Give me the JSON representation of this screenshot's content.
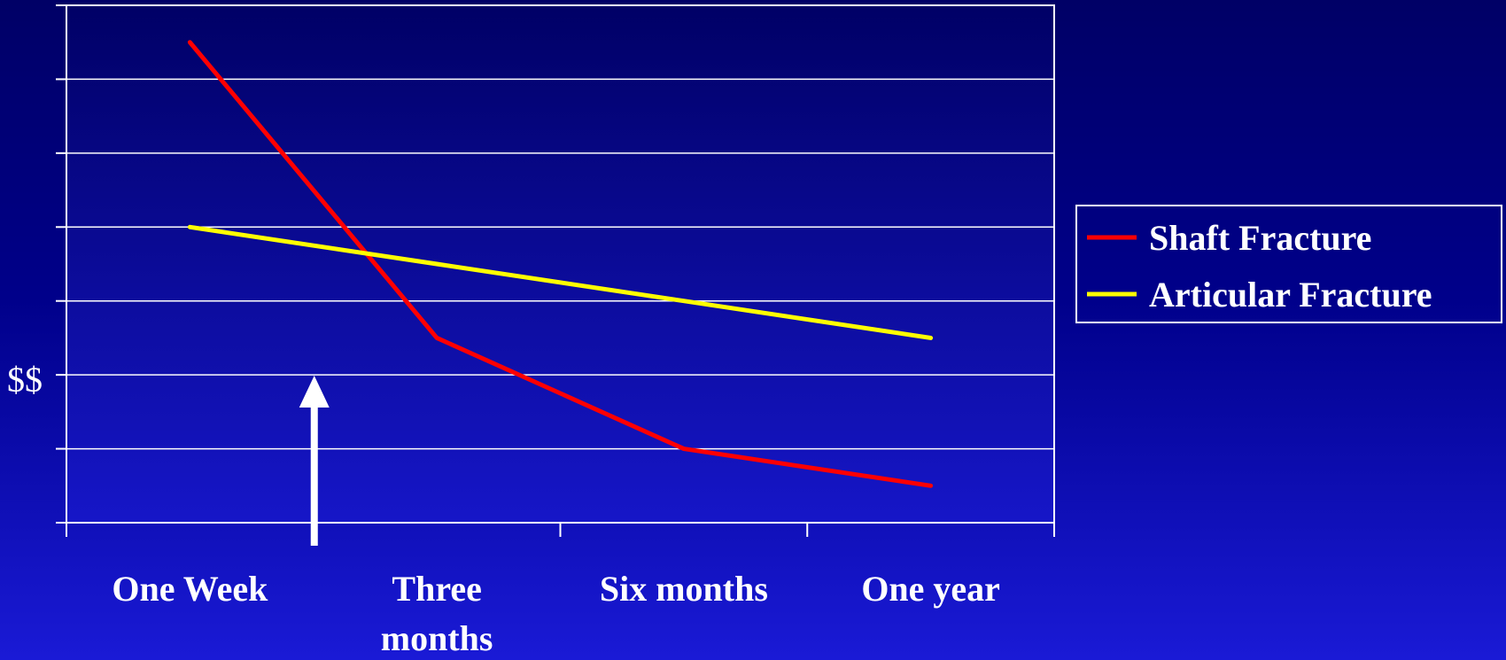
{
  "chart_data": {
    "type": "line",
    "categories": [
      "One Week",
      "Three months",
      "Six months",
      "One year"
    ],
    "series": [
      {
        "name": "Shaft Fracture",
        "values": [
          6.5,
          2.5,
          1.0,
          0.5
        ],
        "color": "#ff0000"
      },
      {
        "name": "Articular Fracture",
        "values": [
          4.0,
          3.5,
          3.0,
          2.5
        ],
        "color": "#ffff00"
      }
    ],
    "title": "",
    "xlabel": "",
    "ylabel": "$$",
    "ylim": [
      0,
      7
    ],
    "grid": true,
    "legend": "right",
    "annotations": [
      {
        "type": "arrow-up",
        "color": "#ffffff",
        "between": [
          "One Week",
          "Three months"
        ]
      }
    ]
  }
}
